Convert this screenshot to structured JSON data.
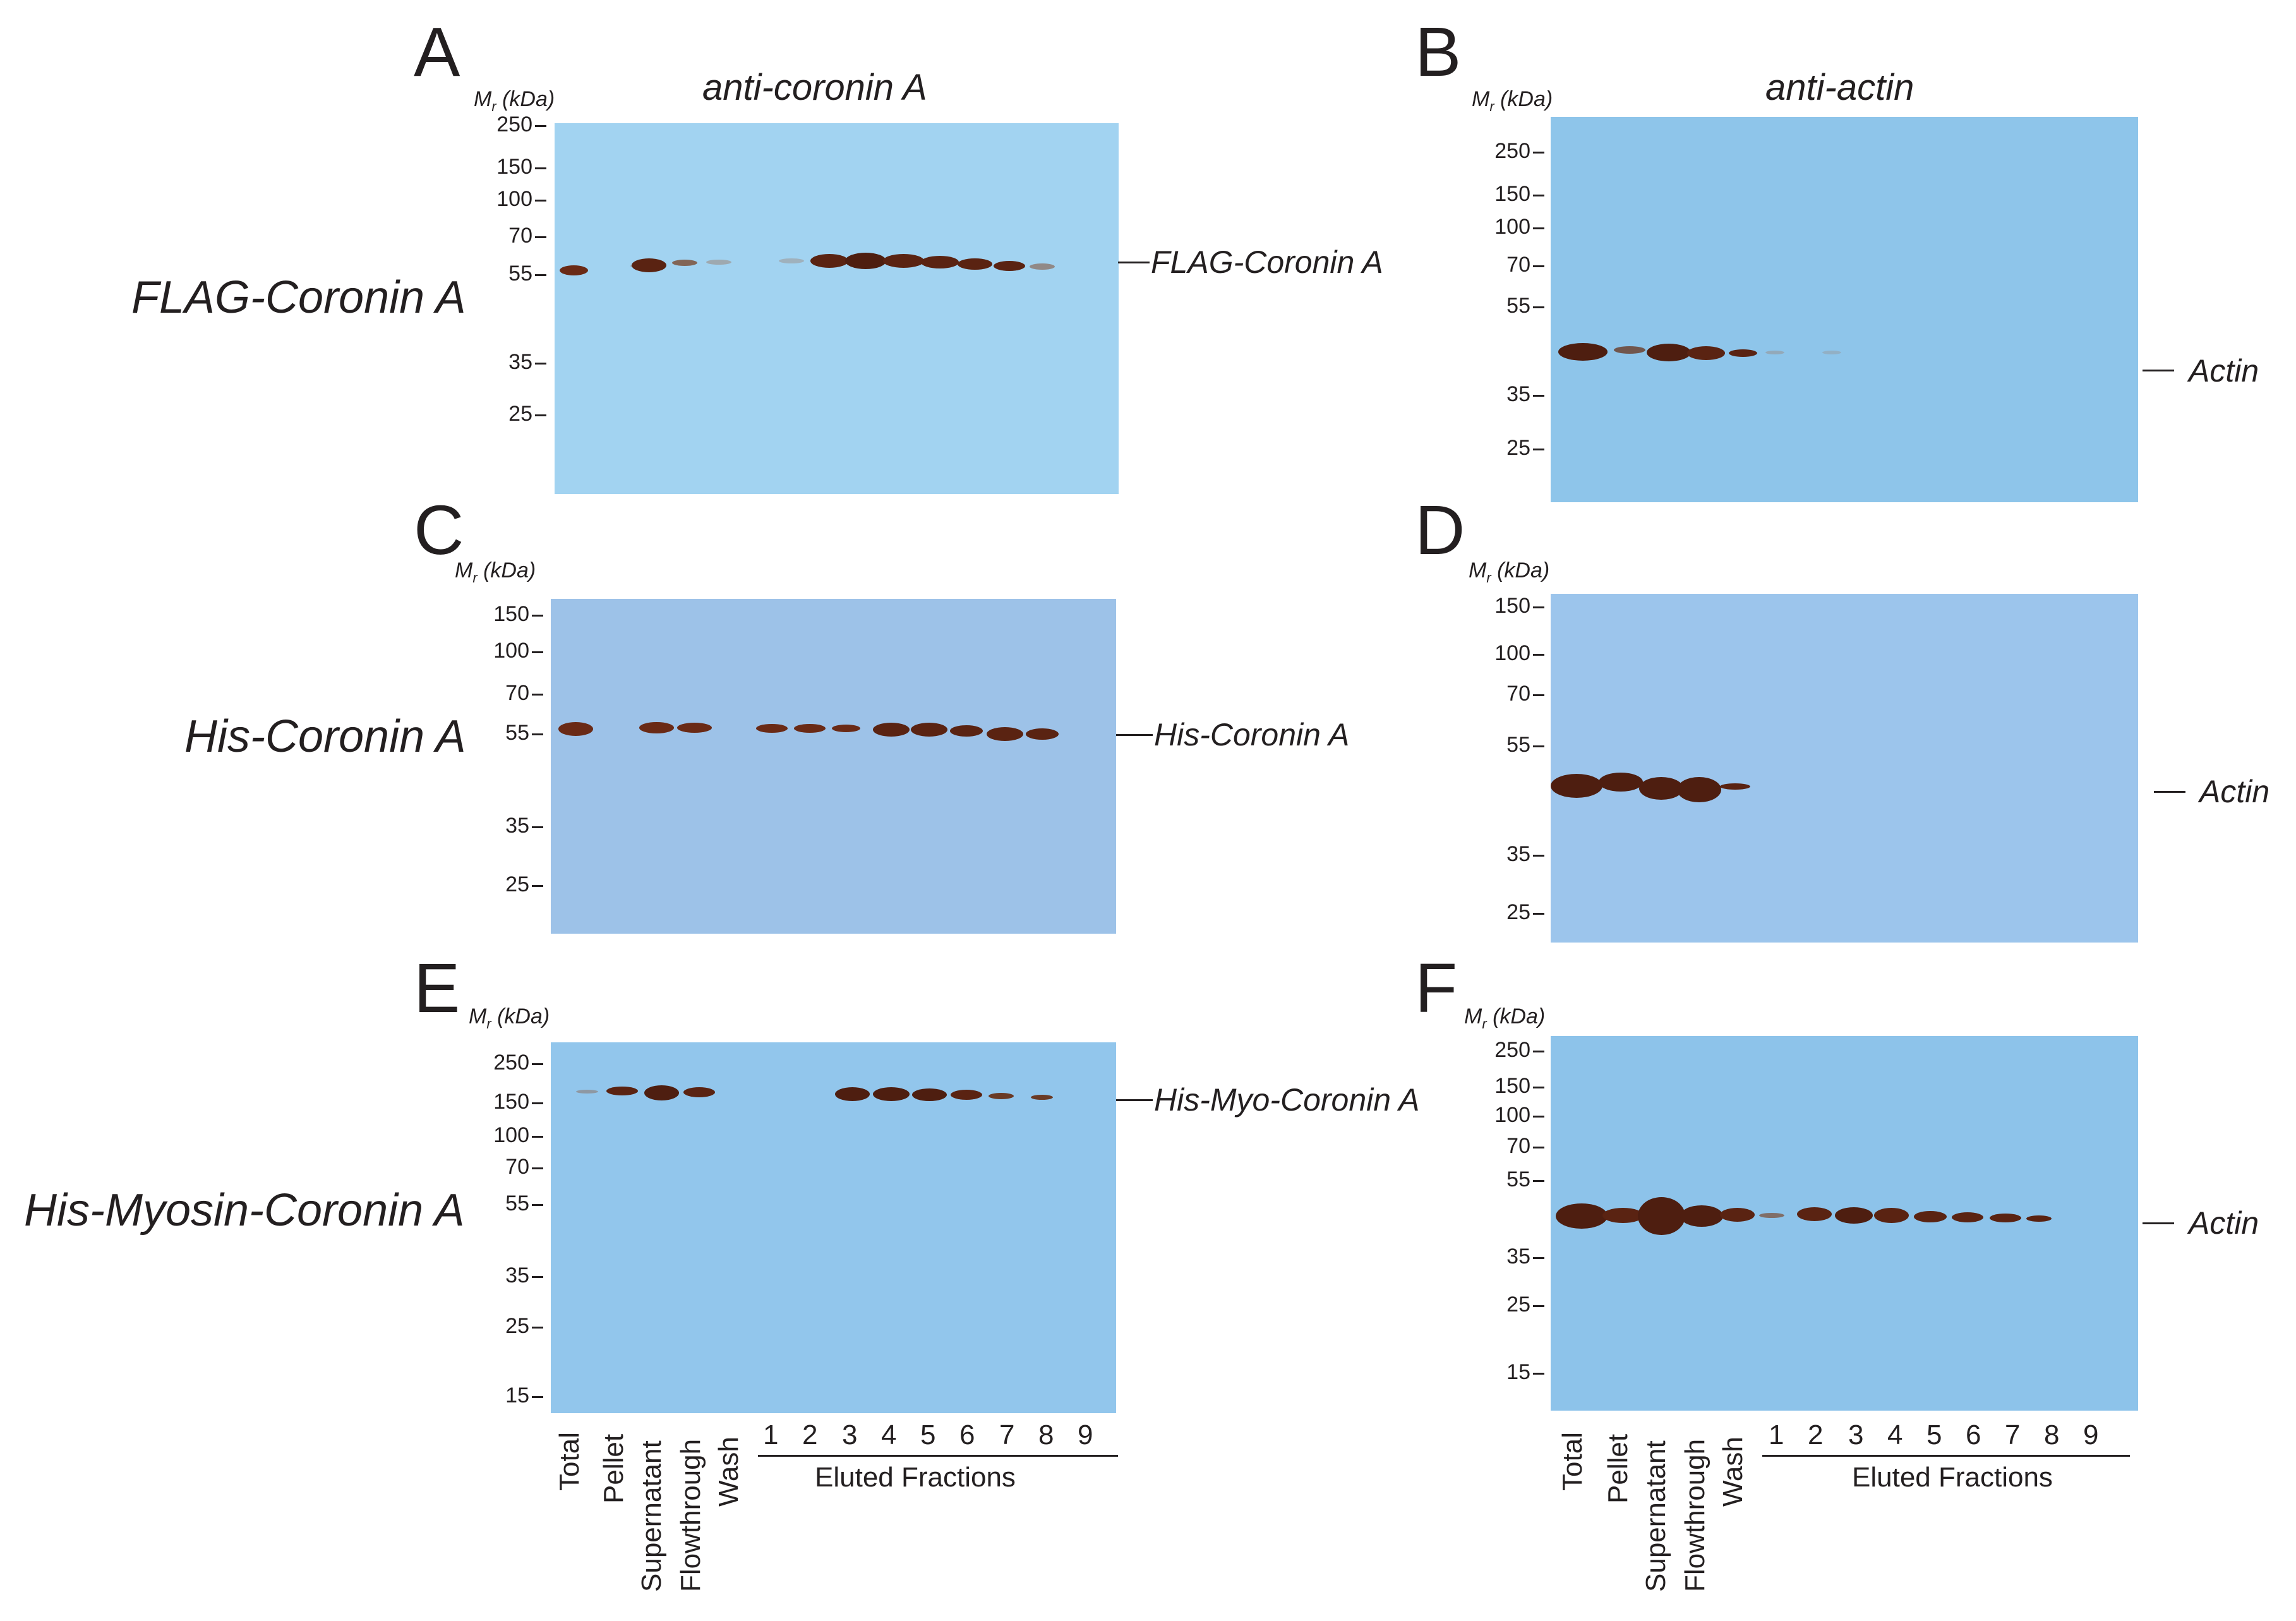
{
  "mr_label": "M",
  "mr_sub": "r",
  "mr_unit": "(kDa)",
  "panels": {
    "A": {
      "letter": "A",
      "title": "anti-coronin A",
      "markers": [
        "250",
        "150",
        "100",
        "70",
        "55",
        "35",
        "25"
      ],
      "band_label": "FLAG-Coronin A"
    },
    "B": {
      "letter": "B",
      "title": "anti-actin",
      "markers": [
        "250",
        "150",
        "100",
        "70",
        "55",
        "35",
        "25"
      ],
      "band_label": "Actin"
    },
    "C": {
      "letter": "C",
      "markers": [
        "150",
        "100",
        "70",
        "55",
        "35",
        "25"
      ],
      "band_label": "His-Coronin A"
    },
    "D": {
      "letter": "D",
      "markers": [
        "150",
        "100",
        "70",
        "55",
        "35",
        "25"
      ],
      "band_label": "Actin"
    },
    "E": {
      "letter": "E",
      "markers": [
        "250",
        "150",
        "100",
        "70",
        "55",
        "35",
        "25",
        "15"
      ],
      "band_label": "His-Myo-Coronin A"
    },
    "F": {
      "letter": "F",
      "markers": [
        "250",
        "150",
        "100",
        "70",
        "55",
        "35",
        "25",
        "15"
      ],
      "band_label": "Actin"
    }
  },
  "row_labels": [
    "FLAG-Coronin A",
    "His-Coronin A",
    "His-Myosin-Coronin A"
  ],
  "lanes": [
    "Total",
    "Pellet",
    "Supernatant",
    "Flowthrough",
    "Wash"
  ],
  "fractions": [
    "1",
    "2",
    "3",
    "4",
    "5",
    "6",
    "7",
    "8",
    "9"
  ],
  "fractions_label": "Eluted Fractions",
  "colors": {
    "band": "#5a2312",
    "gel_A": "#a2d3f1",
    "gel_B": "#8ec5ea",
    "gel_C": "#9dc2e8",
    "gel_D": "#9cc5ec",
    "gel_E": "#92c6ec",
    "gel_F": "#8dc3ea"
  }
}
